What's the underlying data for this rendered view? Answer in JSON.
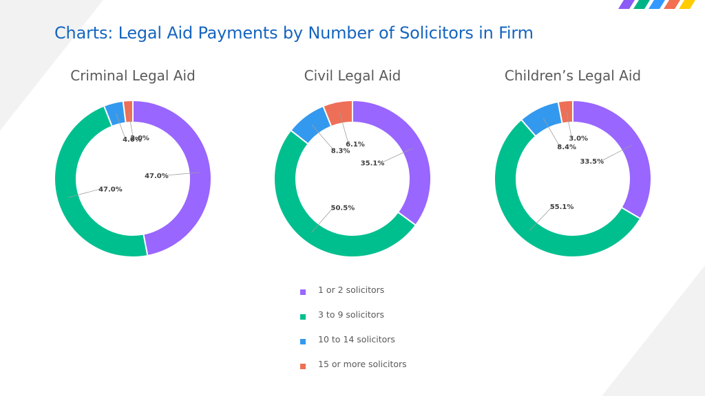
{
  "page": {
    "title": "Charts: Legal Aid Payments by Number of Solicitors in Firm"
  },
  "colors": {
    "title": "#1565c0",
    "background_shape": "#f2f2f2",
    "logo_bars": [
      "#8b5cf6",
      "#00b386",
      "#3399ff",
      "#f07050",
      "#ffcc00"
    ]
  },
  "legend": {
    "items": [
      {
        "label": "1 or 2 solicitors",
        "color": "#9966ff"
      },
      {
        "label": "3 to 9 solicitors",
        "color": "#00bf8f"
      },
      {
        "label": "10 to 14 solicitors",
        "color": "#3399ee"
      },
      {
        "label": "15 or more solicitors",
        "color": "#ee6f57"
      }
    ]
  },
  "chart_data": [
    {
      "type": "pie",
      "subtype": "donut",
      "title": "Criminal Legal Aid",
      "categories": [
        "1 or 2 solicitors",
        "3 to 9 solicitors",
        "10 to 14 solicitors",
        "15 or more solicitors"
      ],
      "values": [
        47.0,
        47.0,
        4.0,
        2.0
      ],
      "labels": [
        "47.0%",
        "47.0%",
        "4.0%",
        "2.0%"
      ],
      "colors": [
        "#9966ff",
        "#00bf8f",
        "#3399ee",
        "#ee6f57"
      ]
    },
    {
      "type": "pie",
      "subtype": "donut",
      "title": "Civil Legal Aid",
      "categories": [
        "1 or 2 solicitors",
        "3 to 9 solicitors",
        "10 to 14 solicitors",
        "15 or more solicitors"
      ],
      "values": [
        35.1,
        50.5,
        8.3,
        6.1
      ],
      "labels": [
        "35.1%",
        "50.5%",
        "8.3%",
        "6.1%"
      ],
      "colors": [
        "#9966ff",
        "#00bf8f",
        "#3399ee",
        "#ee6f57"
      ]
    },
    {
      "type": "pie",
      "subtype": "donut",
      "title": "Children’s Legal Aid",
      "categories": [
        "1 or 2 solicitors",
        "3 to 9 solicitors",
        "10 to 14 solicitors",
        "15 or more solicitors"
      ],
      "values": [
        33.5,
        55.1,
        8.4,
        3.0
      ],
      "labels": [
        "33.5%",
        "55.1%",
        "8.4%",
        "3.0%"
      ],
      "colors": [
        "#9966ff",
        "#00bf8f",
        "#3399ee",
        "#ee6f57"
      ]
    }
  ]
}
